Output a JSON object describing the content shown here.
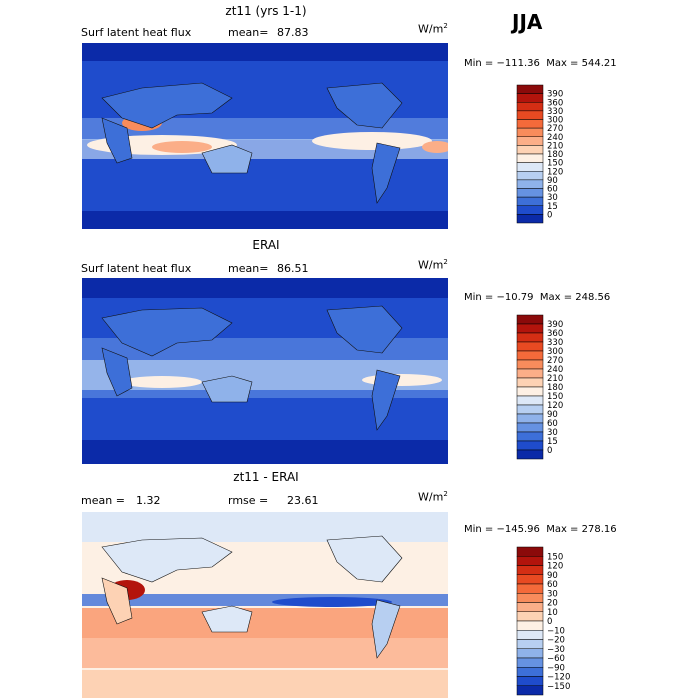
{
  "season": "JJA",
  "panels": [
    {
      "title": "zt11 (yrs 1-1)",
      "variable": "Surf latent heat flux",
      "stat_label": "mean=",
      "stat_value": "87.83",
      "units_base": "W/m",
      "units_exp": "2",
      "minmax": "Min = −111.36  Max = 544.21",
      "colorbar": [
        {
          "label": "390",
          "color": "#8b0a0a"
        },
        {
          "label": "360",
          "color": "#b3140c"
        },
        {
          "label": "330",
          "color": "#d42e14"
        },
        {
          "label": "300",
          "color": "#e84a22"
        },
        {
          "label": "270",
          "color": "#f46a3a"
        },
        {
          "label": "240",
          "color": "#f88c5c"
        },
        {
          "label": "210",
          "color": "#fbae88"
        },
        {
          "label": "180",
          "color": "#fdd2b4"
        },
        {
          "label": "150",
          "color": "#fdf0e4"
        },
        {
          "label": "120",
          "color": "#dde8f7"
        },
        {
          "label": "90",
          "color": "#b7cff1"
        },
        {
          "label": "60",
          "color": "#8fb2ea"
        },
        {
          "label": "30",
          "color": "#6692e2"
        },
        {
          "label": "15",
          "color": "#3d6fd8"
        },
        {
          "label": "0",
          "color": "#1f4ccc"
        },
        {
          "label": "",
          "color": "#0b2aa8"
        }
      ]
    },
    {
      "title": "ERAI",
      "variable": "Surf latent heat flux",
      "stat_label": "mean=",
      "stat_value": "86.51",
      "units_base": "W/m",
      "units_exp": "2",
      "minmax": "Min = −10.79  Max = 248.56",
      "colorbar": [
        {
          "label": "390",
          "color": "#8b0a0a"
        },
        {
          "label": "360",
          "color": "#b3140c"
        },
        {
          "label": "330",
          "color": "#d42e14"
        },
        {
          "label": "300",
          "color": "#e84a22"
        },
        {
          "label": "270",
          "color": "#f46a3a"
        },
        {
          "label": "240",
          "color": "#f88c5c"
        },
        {
          "label": "210",
          "color": "#fbae88"
        },
        {
          "label": "180",
          "color": "#fdd2b4"
        },
        {
          "label": "150",
          "color": "#fdf0e4"
        },
        {
          "label": "120",
          "color": "#dde8f7"
        },
        {
          "label": "90",
          "color": "#b7cff1"
        },
        {
          "label": "60",
          "color": "#8fb2ea"
        },
        {
          "label": "30",
          "color": "#6692e2"
        },
        {
          "label": "15",
          "color": "#3d6fd8"
        },
        {
          "label": "0",
          "color": "#1f4ccc"
        },
        {
          "label": "",
          "color": "#0b2aa8"
        }
      ]
    },
    {
      "title": "zt11 - ERAI",
      "variable": "",
      "stat_label": "mean =",
      "stat_value": "1.32",
      "stat2_label": "rmse =",
      "stat2_value": "23.61",
      "units_base": "W/m",
      "units_exp": "2",
      "minmax": "Min = −145.96  Max = 278.16",
      "colorbar": [
        {
          "label": "150",
          "color": "#8b0a0a"
        },
        {
          "label": "120",
          "color": "#b3140c"
        },
        {
          "label": "90",
          "color": "#d42e14"
        },
        {
          "label": "60",
          "color": "#e84a22"
        },
        {
          "label": "30",
          "color": "#f46a3a"
        },
        {
          "label": "20",
          "color": "#f88c5c"
        },
        {
          "label": "10",
          "color": "#fbae88"
        },
        {
          "label": "0",
          "color": "#fdd2b4"
        },
        {
          "label": "−10",
          "color": "#fdf0e4"
        },
        {
          "label": "−20",
          "color": "#dde8f7"
        },
        {
          "label": "−30",
          "color": "#b7cff1"
        },
        {
          "label": "−60",
          "color": "#8fb2ea"
        },
        {
          "label": "−90",
          "color": "#6692e2"
        },
        {
          "label": "−120",
          "color": "#3d6fd8"
        },
        {
          "label": "−150",
          "color": "#1f4ccc"
        },
        {
          "label": "",
          "color": "#0b2aa8"
        }
      ]
    }
  ],
  "chart_data": [
    {
      "type": "heatmap",
      "title": "zt11 (yrs 1-1)",
      "subtitle": "Surf latent heat flux",
      "units": "W/m2",
      "mean": 87.83,
      "min": -111.36,
      "max": 544.21,
      "levels": [
        0,
        15,
        30,
        60,
        90,
        120,
        150,
        180,
        210,
        240,
        270,
        300,
        330,
        360,
        390
      ]
    },
    {
      "type": "heatmap",
      "title": "ERAI",
      "subtitle": "Surf latent heat flux",
      "units": "W/m2",
      "mean": 86.51,
      "min": -10.79,
      "max": 248.56,
      "levels": [
        0,
        15,
        30,
        60,
        90,
        120,
        150,
        180,
        210,
        240,
        270,
        300,
        330,
        360,
        390
      ]
    },
    {
      "type": "heatmap",
      "title": "zt11 - ERAI",
      "units": "W/m2",
      "mean": 1.32,
      "rmse": 23.61,
      "min": -145.96,
      "max": 278.16,
      "levels": [
        -150,
        -120,
        -90,
        -60,
        -30,
        -20,
        -10,
        0,
        10,
        20,
        30,
        60,
        90,
        120,
        150
      ]
    }
  ]
}
